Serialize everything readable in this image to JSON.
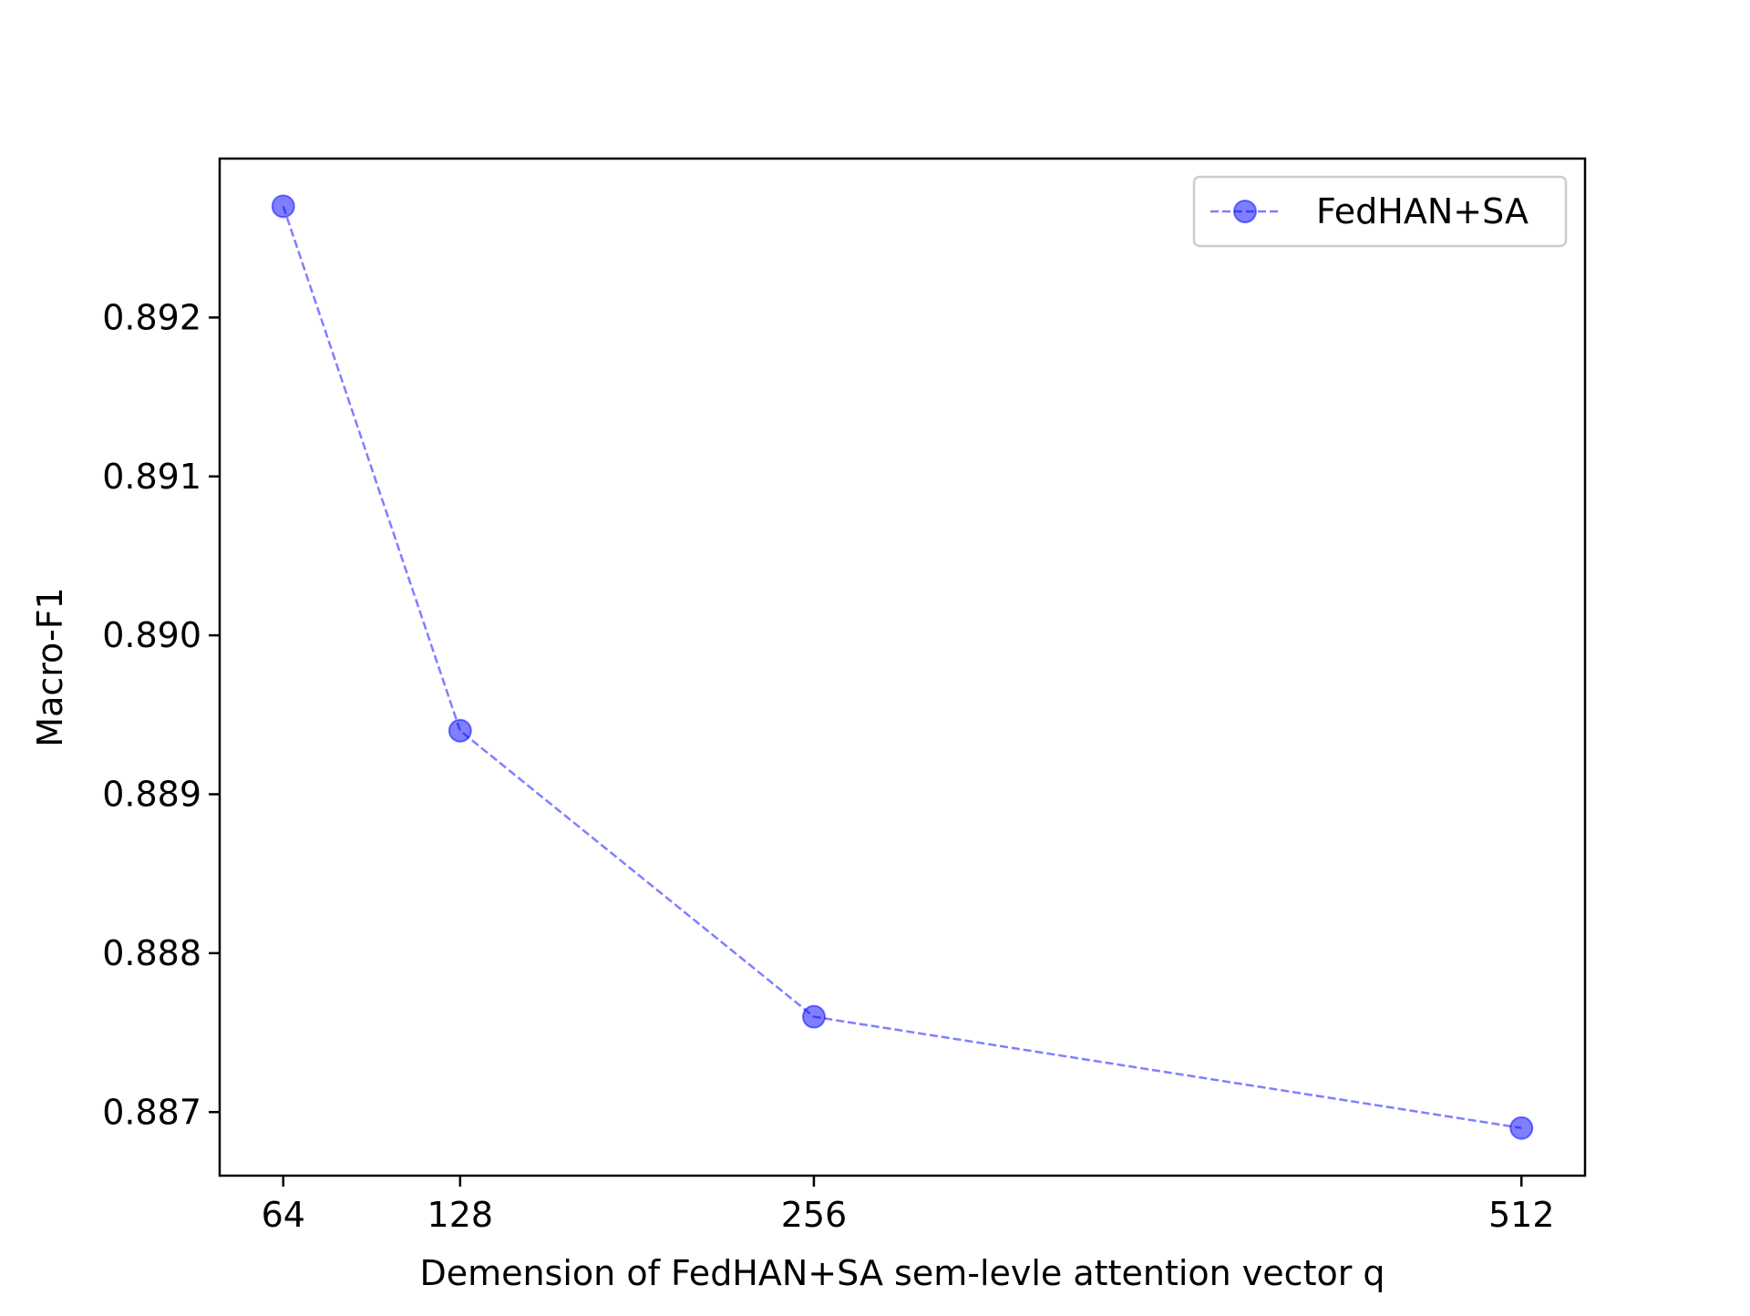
{
  "chart_data": {
    "type": "line",
    "title": "",
    "xlabel": "Demension of FedHAN+SA sem-levle attention vector q",
    "ylabel": "Macro-F1",
    "x": [
      64,
      128,
      256,
      512
    ],
    "x_tick_labels": [
      "64",
      "128",
      "256",
      "512"
    ],
    "y_ticks": [
      0.887,
      0.888,
      0.889,
      0.89,
      0.891,
      0.892
    ],
    "y_tick_labels": [
      "0.887",
      "0.888",
      "0.889",
      "0.890",
      "0.891",
      "0.892"
    ],
    "xlim": [
      41,
      535
    ],
    "ylim": [
      0.8866,
      0.893
    ],
    "grid": false,
    "legend_position": "top-right",
    "series": [
      {
        "name": "FedHAN+SA",
        "values": [
          0.8927,
          0.8894,
          0.8876,
          0.8869
        ],
        "color": "#0000ff",
        "line_style": "dashed",
        "marker": "circle",
        "alpha": 0.5
      }
    ]
  }
}
